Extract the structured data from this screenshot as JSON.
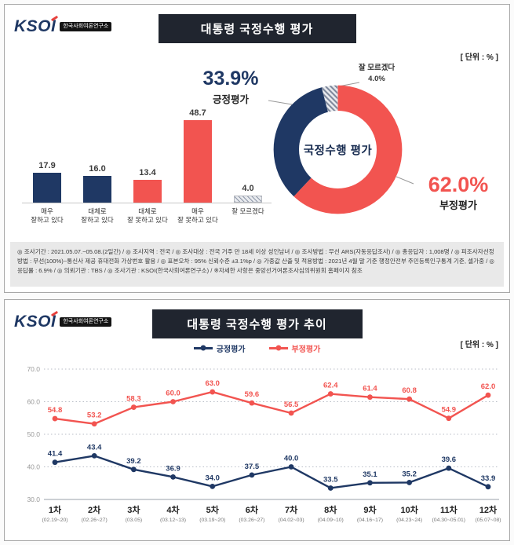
{
  "page": {
    "unit_label": "[ 단위 : % ]"
  },
  "logo": {
    "text": "KSOI",
    "subtitle": "한국사회여론연구소"
  },
  "colors": {
    "navy": "#1F3864",
    "red": "#F25450",
    "title_bg": "#20252F",
    "footnote_bg": "#e9e9e9"
  },
  "panel1": {
    "title": "대통령 국정수행 평가",
    "donut_center_label": "국정수행 평가",
    "positive_callout": {
      "value": "33.9%",
      "label": "긍정평가"
    },
    "negative_callout": {
      "value": "62.0%",
      "label": "부정평가"
    },
    "dontknow_callout": {
      "label": "잘 모르겠다",
      "value": "4.0%"
    },
    "footnote": "◎ 조사기간 : 2021.05.07.~05.08.(2일간) / ◎ 조사지역 : 전국 / ◎ 조사대상 : 전국 거주 만 18세 이상 성인남녀 / ◎ 조사방법 : 무선 ARS(자동응답조사) / ◎ 총응답자 : 1,008명 / ◎ 피조사자선정방법 : 무선(100%)~통신사 제공 휴대전화 가상번호 활용 / ◎ 표본오차 : 95% 신뢰수준 ±3.1%p / ◎ 가중값 산출 및 적용방법 : 2021년 4월 말 기준 행정안전부 주민등록인구통계 기준, 셀가중 / ◎ 응답률 : 6.9% / ◎ 의뢰기관 : TBS / ◎ 조사기관 : KSOI(한국사회여론연구소) / ※자세한 사항은 중앙선거여론조사심의위원회 홈페이지 참조"
  },
  "panel2": {
    "title": "대통령 국정수행 평가 추이"
  },
  "chart_data": [
    {
      "type": "bar",
      "title": "대통령 국정수행 평가",
      "unit": "%",
      "categories": [
        "매우\n잘하고 있다",
        "대체로\n잘하고 있다",
        "대체로\n잘 못하고 있다",
        "매우\n잘 못하고 있다",
        "잘 모르겠다"
      ],
      "values": [
        17.9,
        16.0,
        13.4,
        48.7,
        4.0
      ],
      "colors": [
        "#1F3864",
        "#1F3864",
        "#F25450",
        "#F25450",
        "hatch"
      ]
    },
    {
      "type": "pie",
      "subtype": "donut",
      "title": "국정수행 평가",
      "segments": [
        {
          "label": "부정평가",
          "value": 62.0,
          "color": "#F25450"
        },
        {
          "label": "긍정평가",
          "value": 33.9,
          "color": "#1F3864"
        },
        {
          "label": "잘 모르겠다",
          "value": 4.0,
          "color": "hatch"
        }
      ]
    },
    {
      "type": "line",
      "title": "대통령 국정수행 평가 추이",
      "unit": "%",
      "categories": [
        "1차",
        "2차",
        "3차",
        "4차",
        "5차",
        "6차",
        "7차",
        "8차",
        "9차",
        "10차",
        "11차",
        "12차"
      ],
      "category_dates": [
        "(02.19~20)",
        "(02.26~27)",
        "(03.05)",
        "(03.12~13)",
        "(03.19~20)",
        "(03.26~27)",
        "(04.02~03)",
        "(04.09~10)",
        "(04.16~17)",
        "(04.23~24)",
        "(04.30~05.01)",
        "(05.07~08)"
      ],
      "series": [
        {
          "name": "긍정평가",
          "color": "#1F3864",
          "values": [
            41.4,
            43.4,
            39.2,
            36.9,
            34.0,
            37.5,
            40.0,
            33.5,
            35.1,
            35.2,
            39.6,
            33.9
          ]
        },
        {
          "name": "부정평가",
          "color": "#F25450",
          "values": [
            54.8,
            53.2,
            58.3,
            60.0,
            63.0,
            59.6,
            56.5,
            62.4,
            61.4,
            60.8,
            54.9,
            62.0
          ]
        }
      ],
      "ylim": [
        30.0,
        70.0
      ],
      "yticks": [
        30.0,
        40.0,
        50.0,
        60.0,
        70.0
      ],
      "grid": "dotted-horizontal",
      "legend_position": "top"
    }
  ]
}
